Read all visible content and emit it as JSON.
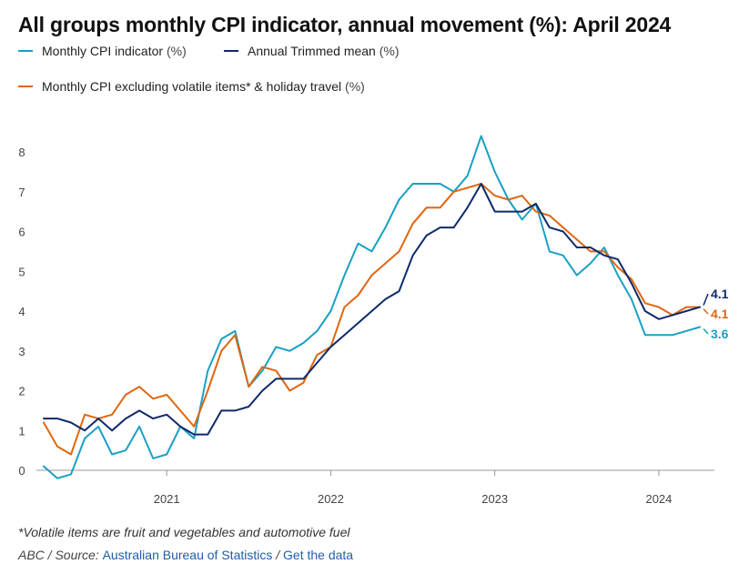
{
  "title": "All groups monthly CPI indicator, annual movement (%): April 2024",
  "legend": [
    {
      "label": "Monthly CPI indicator",
      "unit": "(%)",
      "color": "#1aa0c4"
    },
    {
      "label": "Annual Trimmed mean",
      "unit": "(%)",
      "color": "#0d2a6b"
    },
    {
      "label": "Monthly CPI excluding volatile items* & holiday travel",
      "unit": "(%)",
      "color": "#e0660f"
    }
  ],
  "footnote": "*Volatile items are fruit and vegetables and automotive fuel",
  "source": {
    "prefix": "ABC / Source: ",
    "link1": "Australian Bureau of Statistics",
    "separator": " / ",
    "link2": "Get the data"
  },
  "chart_data": {
    "type": "line",
    "x_start": "2020-04",
    "x_end": "2024-04",
    "x_ticks": [
      {
        "label": "2021",
        "month": "2021-01"
      },
      {
        "label": "2022",
        "month": "2022-01"
      },
      {
        "label": "2023",
        "month": "2023-01"
      },
      {
        "label": "2024",
        "month": "2024-01"
      }
    ],
    "ylim": [
      0,
      8
    ],
    "y_ticks": [
      0,
      1,
      2,
      3,
      4,
      5,
      6,
      7,
      8
    ],
    "grid": false,
    "series": [
      {
        "name": "Monthly CPI indicator (%)",
        "color": "#1aa0c4",
        "end_label": "3.6",
        "values": [
          0.1,
          -0.2,
          -0.1,
          0.8,
          1.1,
          0.4,
          0.5,
          1.1,
          0.3,
          0.4,
          1.1,
          0.8,
          2.5,
          3.3,
          3.5,
          2.1,
          2.5,
          3.1,
          3.0,
          3.2,
          3.5,
          4.0,
          4.9,
          5.7,
          5.5,
          6.1,
          6.8,
          7.2,
          7.2,
          7.2,
          7.0,
          7.4,
          8.4,
          7.5,
          6.8,
          6.3,
          6.7,
          5.5,
          5.4,
          4.9,
          5.2,
          5.6,
          4.9,
          4.3,
          3.4,
          3.4,
          3.4,
          3.5,
          3.6
        ]
      },
      {
        "name": "Annual Trimmed mean (%)",
        "color": "#0d2a6b",
        "end_label": "4.1",
        "values": [
          1.3,
          1.3,
          1.2,
          1.0,
          1.3,
          1.0,
          1.3,
          1.5,
          1.3,
          1.4,
          1.1,
          0.9,
          0.9,
          1.5,
          1.5,
          1.6,
          2.0,
          2.3,
          2.3,
          2.3,
          2.7,
          3.1,
          3.4,
          3.7,
          4.0,
          4.3,
          4.5,
          5.4,
          5.9,
          6.1,
          6.1,
          6.6,
          7.2,
          6.5,
          6.5,
          6.5,
          6.7,
          6.1,
          6.0,
          5.6,
          5.6,
          5.4,
          5.3,
          4.7,
          4.0,
          3.8,
          3.9,
          4.0,
          4.1
        ]
      },
      {
        "name": "Monthly CPI excluding volatile items* & holiday travel (%)",
        "color": "#e0660f",
        "end_label": "4.1",
        "values": [
          1.2,
          0.6,
          0.4,
          1.4,
          1.3,
          1.4,
          1.9,
          2.1,
          1.8,
          1.9,
          1.5,
          1.1,
          2.0,
          3.0,
          3.4,
          2.1,
          2.6,
          2.5,
          2.0,
          2.2,
          2.9,
          3.1,
          4.1,
          4.4,
          4.9,
          5.2,
          5.5,
          6.2,
          6.6,
          6.6,
          7.0,
          7.1,
          7.2,
          6.9,
          6.8,
          6.9,
          6.5,
          6.4,
          6.1,
          5.8,
          5.5,
          5.5,
          5.1,
          4.8,
          4.2,
          4.1,
          3.9,
          4.1,
          4.1
        ]
      }
    ]
  }
}
